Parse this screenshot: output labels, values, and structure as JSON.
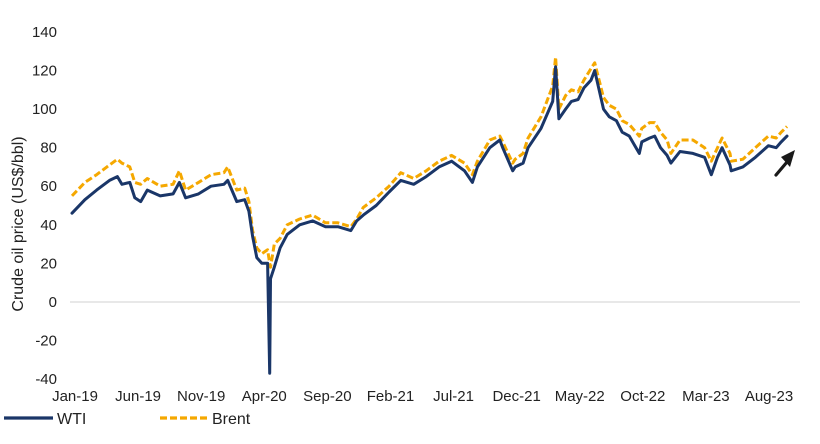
{
  "chart_data": {
    "type": "line",
    "title": "",
    "xlabel": "",
    "ylabel": "Crude oil price (US$/bbl)",
    "ylim": [
      -40,
      140
    ],
    "yticks": [
      140,
      120,
      100,
      80,
      60,
      40,
      20,
      0,
      -20,
      -40
    ],
    "xticks": [
      "Jan-19",
      "Jun-19",
      "Nov-19",
      "Apr-20",
      "Sep-20",
      "Feb-21",
      "Jul-21",
      "Dec-21",
      "May-22",
      "Oct-22",
      "Mar-23",
      "Aug-23"
    ],
    "grid": false,
    "legend": "bottom-left",
    "annotation": "upward arrow at latest Brent value",
    "series": [
      {
        "name": "WTI",
        "color": "#1a3668",
        "style": "solid",
        "x": [
          "2019-01-01",
          "2019-02-01",
          "2019-03-01",
          "2019-04-01",
          "2019-04-20",
          "2019-05-01",
          "2019-05-20",
          "2019-06-01",
          "2019-06-15",
          "2019-07-01",
          "2019-08-01",
          "2019-09-01",
          "2019-09-16",
          "2019-10-01",
          "2019-11-01",
          "2019-12-01",
          "2020-01-01",
          "2020-01-10",
          "2020-02-01",
          "2020-02-20",
          "2020-03-01",
          "2020-03-10",
          "2020-03-20",
          "2020-04-01",
          "2020-04-15",
          "2020-04-20",
          "2020-04-22",
          "2020-05-01",
          "2020-05-15",
          "2020-06-01",
          "2020-07-01",
          "2020-08-01",
          "2020-09-01",
          "2020-10-01",
          "2020-11-01",
          "2020-11-15",
          "2020-12-01",
          "2021-01-01",
          "2021-02-01",
          "2021-03-01",
          "2021-04-01",
          "2021-05-01",
          "2021-06-01",
          "2021-07-01",
          "2021-08-01",
          "2021-08-20",
          "2021-09-01",
          "2021-10-01",
          "2021-10-25",
          "2021-11-01",
          "2021-11-25",
          "2021-12-01",
          "2021-12-20",
          "2022-01-01",
          "2022-02-01",
          "2022-03-01",
          "2022-03-08",
          "2022-03-16",
          "2022-04-01",
          "2022-04-15",
          "2022-05-01",
          "2022-05-15",
          "2022-06-01",
          "2022-06-10",
          "2022-07-01",
          "2022-07-15",
          "2022-08-01",
          "2022-08-15",
          "2022-09-01",
          "2022-09-25",
          "2022-10-01",
          "2022-10-20",
          "2022-11-01",
          "2022-11-15",
          "2022-12-01",
          "2022-12-10",
          "2023-01-01",
          "2023-02-01",
          "2023-03-01",
          "2023-03-17",
          "2023-04-01",
          "2023-04-12",
          "2023-05-01",
          "2023-05-04",
          "2023-06-01",
          "2023-07-01",
          "2023-08-01",
          "2023-08-20",
          "2023-09-01",
          "2023-09-15"
        ],
        "values": [
          46,
          53,
          58,
          63,
          65,
          61,
          62,
          54,
          52,
          58,
          55,
          56,
          62,
          54,
          56,
          60,
          61,
          63,
          52,
          53,
          47,
          34,
          23,
          20,
          20,
          -37,
          12,
          18,
          28,
          35,
          40,
          42,
          39,
          39,
          37,
          42,
          45,
          50,
          57,
          63,
          61,
          65,
          70,
          73,
          68,
          62,
          70,
          80,
          84,
          80,
          68,
          70,
          72,
          80,
          90,
          104,
          122,
          95,
          100,
          104,
          105,
          111,
          115,
          120,
          100,
          96,
          94,
          88,
          86,
          77,
          83,
          85,
          86,
          80,
          76,
          72,
          78,
          77,
          75,
          66,
          75,
          80,
          71,
          68,
          70,
          75,
          81,
          80,
          83,
          86
        ]
      },
      {
        "name": "Brent",
        "color": "#f5a800",
        "style": "dashed",
        "x": [
          "2019-01-01",
          "2019-02-01",
          "2019-03-01",
          "2019-04-01",
          "2019-04-20",
          "2019-05-01",
          "2019-05-20",
          "2019-06-01",
          "2019-06-15",
          "2019-07-01",
          "2019-08-01",
          "2019-09-01",
          "2019-09-16",
          "2019-10-01",
          "2019-11-01",
          "2019-12-01",
          "2020-01-01",
          "2020-01-10",
          "2020-02-01",
          "2020-02-20",
          "2020-03-01",
          "2020-03-10",
          "2020-03-20",
          "2020-04-01",
          "2020-04-15",
          "2020-04-20",
          "2020-04-22",
          "2020-05-01",
          "2020-05-15",
          "2020-06-01",
          "2020-07-01",
          "2020-08-01",
          "2020-09-01",
          "2020-10-01",
          "2020-11-01",
          "2020-11-15",
          "2020-12-01",
          "2021-01-01",
          "2021-02-01",
          "2021-03-01",
          "2021-04-01",
          "2021-05-01",
          "2021-06-01",
          "2021-07-01",
          "2021-08-01",
          "2021-08-20",
          "2021-09-01",
          "2021-10-01",
          "2021-10-25",
          "2021-11-01",
          "2021-11-25",
          "2021-12-01",
          "2021-12-20",
          "2022-01-01",
          "2022-02-01",
          "2022-03-01",
          "2022-03-08",
          "2022-03-16",
          "2022-04-01",
          "2022-04-15",
          "2022-05-01",
          "2022-05-15",
          "2022-06-01",
          "2022-06-10",
          "2022-07-01",
          "2022-07-15",
          "2022-08-01",
          "2022-08-15",
          "2022-09-01",
          "2022-09-25",
          "2022-10-01",
          "2022-10-20",
          "2022-11-01",
          "2022-11-15",
          "2022-12-01",
          "2022-12-10",
          "2023-01-01",
          "2023-02-01",
          "2023-03-01",
          "2023-03-17",
          "2023-04-01",
          "2023-04-12",
          "2023-05-01",
          "2023-05-04",
          "2023-06-01",
          "2023-07-01",
          "2023-08-01",
          "2023-08-20",
          "2023-09-01",
          "2023-09-15"
        ],
        "values": [
          55,
          62,
          66,
          71,
          74,
          72,
          70,
          62,
          61,
          64,
          60,
          61,
          68,
          58,
          62,
          66,
          67,
          70,
          58,
          59,
          52,
          37,
          28,
          25,
          27,
          20,
          18,
          30,
          33,
          40,
          43,
          45,
          41,
          41,
          39,
          43,
          49,
          54,
          60,
          67,
          64,
          68,
          73,
          76,
          72,
          66,
          73,
          84,
          86,
          83,
          72,
          74,
          77,
          85,
          96,
          112,
          127,
          100,
          107,
          110,
          109,
          115,
          121,
          124,
          106,
          102,
          100,
          94,
          92,
          86,
          90,
          93,
          93,
          88,
          84,
          77,
          84,
          84,
          80,
          73,
          80,
          85,
          77,
          73,
          74,
          80,
          86,
          85,
          88,
          91
        ]
      }
    ]
  }
}
